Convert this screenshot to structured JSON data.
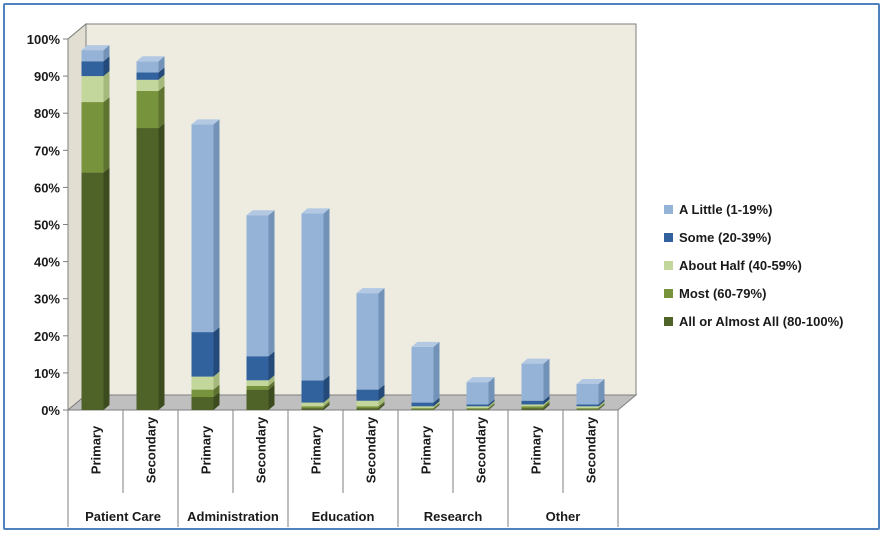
{
  "chart_data": {
    "type": "bar",
    "stacked": true,
    "three_d": true,
    "ylim": [
      0,
      100
    ],
    "y_ticks": [
      "0%",
      "10%",
      "20%",
      "30%",
      "40%",
      "50%",
      "60%",
      "70%",
      "80%",
      "90%",
      "100%"
    ],
    "groups": [
      "Patient Care",
      "Administration",
      "Education",
      "Research",
      "Other"
    ],
    "subcategories": [
      "Primary",
      "Secondary"
    ],
    "categories": [
      "Patient Care - Primary",
      "Patient Care - Secondary",
      "Administration - Primary",
      "Administration - Secondary",
      "Education - Primary",
      "Education - Secondary",
      "Research - Primary",
      "Research - Secondary",
      "Other - Primary",
      "Other - Secondary"
    ],
    "series": [
      {
        "name": "All or Almost All (80-100%)",
        "color": "#4f6228",
        "side_color": "#3d4c1f",
        "top_color": "#62782f",
        "values": [
          64,
          76,
          3.5,
          5.5,
          0.5,
          0.5,
          0.2,
          0.2,
          0.5,
          0.2
        ]
      },
      {
        "name": "Most (60-79%)",
        "color": "#77933c",
        "side_color": "#5d732f",
        "top_color": "#8fac4c",
        "values": [
          19,
          10,
          2,
          1,
          0.5,
          0.5,
          0.3,
          0.3,
          0.5,
          0.3
        ]
      },
      {
        "name": "About Half (40-59%)",
        "color": "#c3d69b",
        "side_color": "#a4b97b",
        "top_color": "#d7e4bd",
        "values": [
          7,
          3,
          3.5,
          1.5,
          1,
          1.5,
          0.5,
          0.5,
          0.5,
          0.5
        ]
      },
      {
        "name": "Some (20-39%)",
        "color": "#31629e",
        "side_color": "#244a79",
        "top_color": "#4375b2",
        "values": [
          4,
          2,
          12,
          6.5,
          6,
          3,
          1,
          0.5,
          1,
          0.5
        ]
      },
      {
        "name": "A Little (1-19%)",
        "color": "#95b3d7",
        "side_color": "#7392b8",
        "top_color": "#b2c8e3",
        "values": [
          3,
          3,
          56,
          38,
          45,
          26,
          15,
          6,
          10,
          5.5
        ]
      }
    ],
    "legend_order": [
      "A Little (1-19%)",
      "Some (20-39%)",
      "About Half (40-59%)",
      "Most (60-79%)",
      "All or Almost All (80-100%)"
    ],
    "legend_position": "right",
    "grid": false,
    "backwall_color": "#eeece1"
  }
}
